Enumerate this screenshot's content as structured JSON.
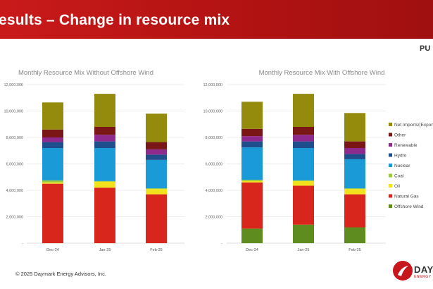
{
  "header": {
    "title": "esults – Change in resource mix",
    "tag": "PU"
  },
  "footer": {
    "copyright": "© 2025 Daymark Energy Advisors, Inc."
  },
  "logo": {
    "text": "DAY",
    "sub": "ENERGY"
  },
  "colors": {
    "banner": "#b81414",
    "Offshore Wind": "#5e8c1f",
    "Natural Gas": "#d9261c",
    "Oil": "#f2e21d",
    "Coal": "#9acb3c",
    "Nuclear": "#1a9bd8",
    "Hydro": "#1f4e8c",
    "Renewable": "#8e2a8e",
    "Other": "#7a1616",
    "Net Imports/(Exports)": "#948a0c"
  },
  "chart_data": [
    {
      "type": "bar",
      "stacked": true,
      "title": "Monthly Resource Mix Without Offshore Wind",
      "categories": [
        "Dec-24",
        "Jan-25",
        "Feb-25"
      ],
      "yticks": [
        "-",
        "2,000,000",
        "4,000,000",
        "6,000,000",
        "8,000,000",
        "10,000,000",
        "12,000,000"
      ],
      "ylim": [
        0,
        12000000
      ],
      "series": [
        {
          "name": "Offshore Wind",
          "values": [
            0,
            0,
            0
          ]
        },
        {
          "name": "Natural Gas",
          "values": [
            4500000,
            4200000,
            3700000
          ]
        },
        {
          "name": "Oil",
          "values": [
            100000,
            450000,
            400000
          ]
        },
        {
          "name": "Coal",
          "values": [
            150000,
            50000,
            50000
          ]
        },
        {
          "name": "Nuclear",
          "values": [
            2450000,
            2500000,
            2150000
          ]
        },
        {
          "name": "Hydro",
          "values": [
            450000,
            500000,
            400000
          ]
        },
        {
          "name": "Renewable",
          "values": [
            350000,
            500000,
            400000
          ]
        },
        {
          "name": "Other",
          "values": [
            600000,
            600000,
            550000
          ]
        },
        {
          "name": "Net Imports/(Exports)",
          "values": [
            2050000,
            2500000,
            2150000
          ]
        }
      ]
    },
    {
      "type": "bar",
      "stacked": true,
      "title": "Monthly Resource Mix With Offshore Wind",
      "categories": [
        "Dec-24",
        "Jan-25",
        "Feb-25"
      ],
      "yticks": [
        "-",
        "2,000,000",
        "4,000,000",
        "6,000,000",
        "8,000,000",
        "10,000,000",
        "12,000,000"
      ],
      "ylim": [
        0,
        12000000
      ],
      "series": [
        {
          "name": "Offshore Wind",
          "values": [
            1100000,
            1400000,
            1200000
          ]
        },
        {
          "name": "Natural Gas",
          "values": [
            3500000,
            2950000,
            2500000
          ]
        },
        {
          "name": "Oil",
          "values": [
            100000,
            350000,
            400000
          ]
        },
        {
          "name": "Coal",
          "values": [
            100000,
            50000,
            50000
          ]
        },
        {
          "name": "Nuclear",
          "values": [
            2450000,
            2450000,
            2200000
          ]
        },
        {
          "name": "Hydro",
          "values": [
            450000,
            500000,
            400000
          ]
        },
        {
          "name": "Renewable",
          "values": [
            400000,
            500000,
            450000
          ]
        },
        {
          "name": "Other",
          "values": [
            550000,
            600000,
            500000
          ]
        },
        {
          "name": "Net Imports/(Exports)",
          "values": [
            2050000,
            2500000,
            2150000
          ]
        }
      ]
    }
  ],
  "legend": [
    "Net Imports/(Exports)",
    "Other",
    "Renewable",
    "Hydro",
    "Nuclear",
    "Coal",
    "Oil",
    "Natural Gas",
    "Offshore Wind"
  ]
}
